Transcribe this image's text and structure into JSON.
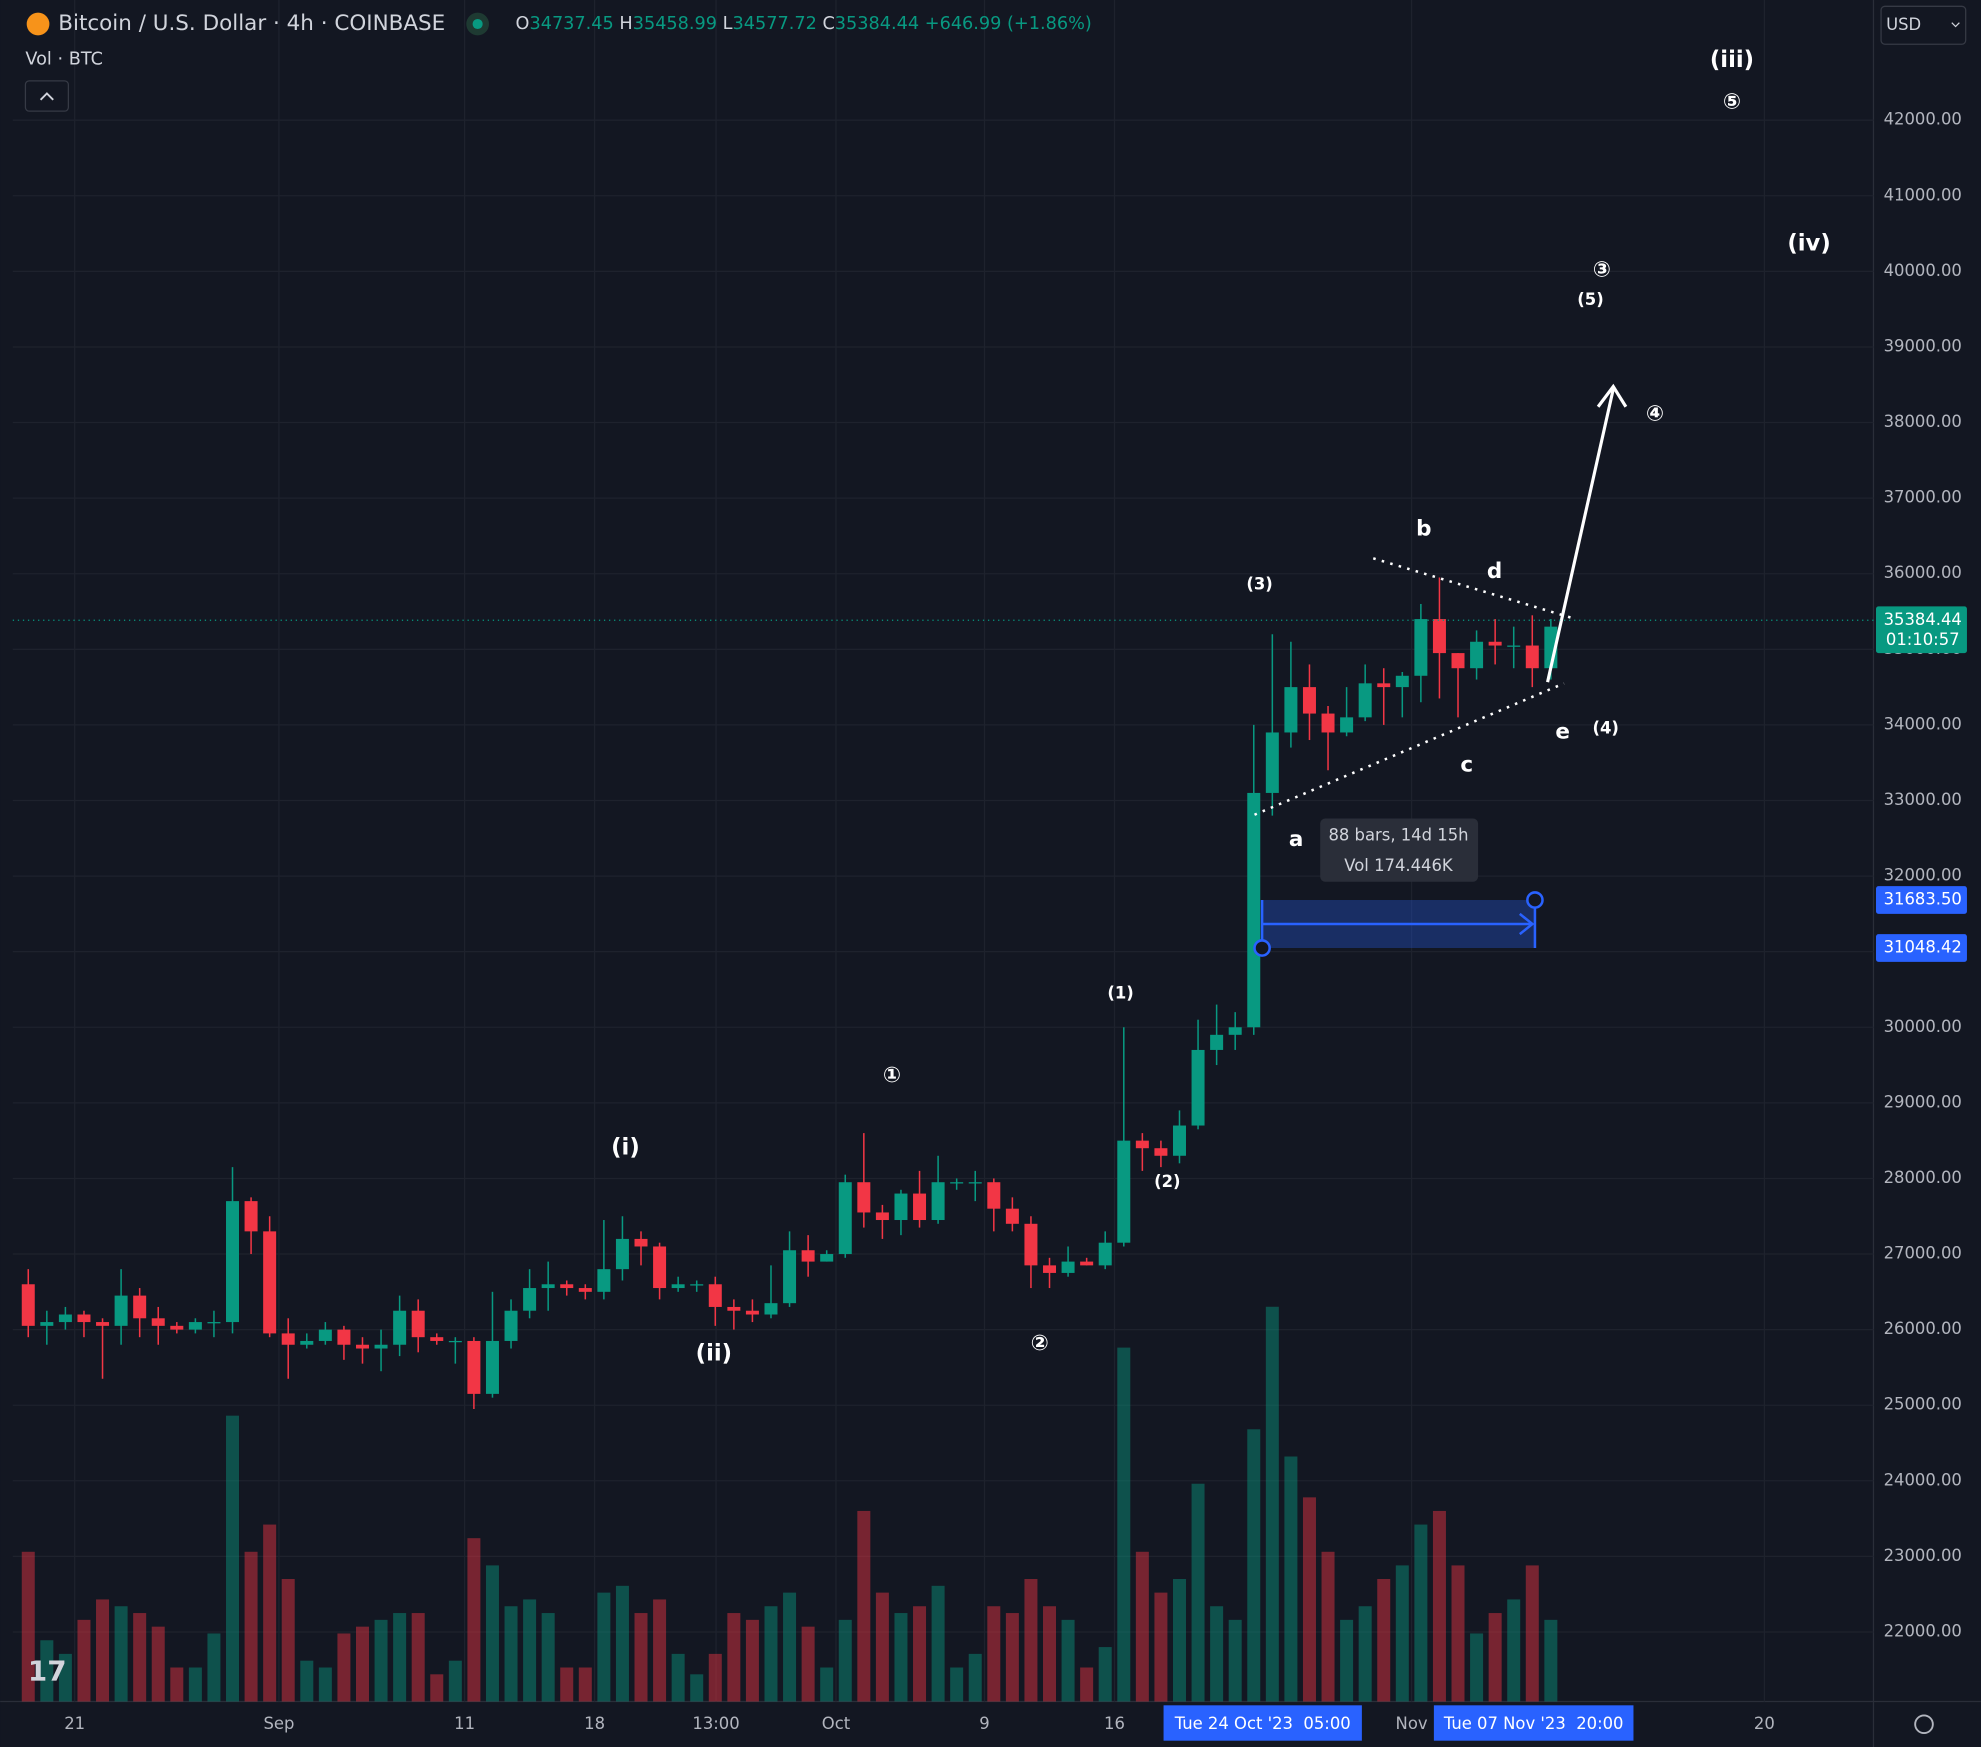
{
  "header": {
    "title": "Bitcoin / U.S. Dollar · 4h · COINBASE",
    "indicator": "Vol · BTC",
    "currency": "USD",
    "ohlc": [
      {
        "label": "O",
        "value": 34737.45
      },
      {
        "label": "H",
        "value": 35458.99
      },
      {
        "label": "L",
        "value": 34577.72
      },
      {
        "label": "C",
        "value": 35384.44
      }
    ],
    "change": "+646.99 (+1.86%)",
    "countdown": "01:10:57"
  },
  "chart_data": {
    "type": "candlestick",
    "up_color": "#089981",
    "down_color": "#f23645",
    "xlim": [
      "2023-08-17T16:00:00Z",
      "2023-11-25T21:00:00Z"
    ],
    "xticks": [
      {
        "value": "2023-08-21",
        "label": "21"
      },
      {
        "value": "2023-09-01",
        "label": "Sep"
      },
      {
        "value": "2023-09-11",
        "label": "11"
      },
      {
        "value": "2023-09-18",
        "label": "18"
      },
      {
        "value": "2023-09-24T13:00:00Z",
        "label": "13:00"
      },
      {
        "value": "2023-10-01",
        "label": "Oct"
      },
      {
        "value": "2023-10-09",
        "label": "9"
      },
      {
        "value": "2023-10-16",
        "label": "16"
      },
      {
        "value": "2023-11-01",
        "label": "Nov"
      },
      {
        "value": "2023-11-20",
        "label": "20"
      }
    ],
    "ylim": [
      21080,
      43590
    ],
    "yticks": [
      {
        "value": 22000,
        "label": "22000.00"
      },
      {
        "value": 23000,
        "label": "23000.00"
      },
      {
        "value": 24000,
        "label": "24000.00"
      },
      {
        "value": 25000,
        "label": "25000.00"
      },
      {
        "value": 26000,
        "label": "26000.00"
      },
      {
        "value": 27000,
        "label": "27000.00"
      },
      {
        "value": 28000,
        "label": "28000.00"
      },
      {
        "value": 29000,
        "label": "29000.00"
      },
      {
        "value": 30000,
        "label": "30000.00"
      },
      {
        "value": 31000,
        "label": "31000.00"
      },
      {
        "value": 32000,
        "label": "32000.00"
      },
      {
        "value": 33000,
        "label": "33000.00"
      },
      {
        "value": 34000,
        "label": "34000.00"
      },
      {
        "value": 35000,
        "label": "35000.00"
      },
      {
        "value": 36000,
        "label": "36000.00"
      },
      {
        "value": 37000,
        "label": "37000.00"
      },
      {
        "value": 38000,
        "label": "38000.00"
      },
      {
        "value": 39000,
        "label": "39000.00"
      },
      {
        "value": 40000,
        "label": "40000.00"
      },
      {
        "value": 41000,
        "label": "41000.00"
      },
      {
        "value": 42000,
        "label": "42000.00"
      }
    ],
    "grid": true,
    "volume_lim": [
      0,
      250000
    ],
    "x": [
      "2023-08-18",
      "2023-08-19",
      "2023-08-20",
      "2023-08-21",
      "2023-08-22",
      "2023-08-23",
      "2023-08-24",
      "2023-08-25",
      "2023-08-26",
      "2023-08-27",
      "2023-08-28",
      "2023-08-29",
      "2023-08-30",
      "2023-08-31",
      "2023-09-01",
      "2023-09-02",
      "2023-09-03",
      "2023-09-04",
      "2023-09-05",
      "2023-09-06",
      "2023-09-07",
      "2023-09-08",
      "2023-09-09",
      "2023-09-10",
      "2023-09-11",
      "2023-09-12",
      "2023-09-13",
      "2023-09-14",
      "2023-09-15",
      "2023-09-16",
      "2023-09-17",
      "2023-09-18",
      "2023-09-19",
      "2023-09-20",
      "2023-09-21",
      "2023-09-22",
      "2023-09-23",
      "2023-09-24",
      "2023-09-25",
      "2023-09-26",
      "2023-09-27",
      "2023-09-28",
      "2023-09-29",
      "2023-09-30",
      "2023-10-01",
      "2023-10-02",
      "2023-10-03",
      "2023-10-04",
      "2023-10-05",
      "2023-10-06",
      "2023-10-07",
      "2023-10-08",
      "2023-10-09",
      "2023-10-10",
      "2023-10-11",
      "2023-10-12",
      "2023-10-13",
      "2023-10-14",
      "2023-10-15",
      "2023-10-16",
      "2023-10-17",
      "2023-10-18",
      "2023-10-19",
      "2023-10-20",
      "2023-10-21",
      "2023-10-22",
      "2023-10-23",
      "2023-10-24",
      "2023-10-25",
      "2023-10-26",
      "2023-10-27",
      "2023-10-28",
      "2023-10-29",
      "2023-10-30",
      "2023-10-31",
      "2023-11-01",
      "2023-11-02",
      "2023-11-03",
      "2023-11-04",
      "2023-11-05",
      "2023-11-06",
      "2023-11-07",
      "2023-11-08"
    ],
    "open": [
      26600,
      26050,
      26100,
      26200,
      26100,
      26050,
      26450,
      26150,
      26050,
      26000,
      26100,
      26100,
      27700,
      27300,
      25950,
      25800,
      25850,
      26000,
      25800,
      25750,
      25800,
      26250,
      25900,
      25850,
      25850,
      25150,
      25850,
      26250,
      26550,
      26600,
      26550,
      26500,
      26800,
      27200,
      27100,
      26550,
      26600,
      26600,
      26300,
      26250,
      26200,
      26350,
      27050,
      26900,
      27000,
      27950,
      27550,
      27450,
      27800,
      27450,
      27950,
      27950,
      27950,
      27600,
      27400,
      26850,
      26750,
      26900,
      26850,
      27150,
      28500,
      28400,
      28300,
      28700,
      29700,
      29900,
      30000,
      33100,
      33900,
      34500,
      34150,
      33900,
      34100,
      34550,
      34500,
      34650,
      35400,
      34950,
      34750,
      35100,
      35050,
      35050,
      34750
    ],
    "high": [
      26800,
      26250,
      26300,
      26250,
      26150,
      26800,
      26550,
      26300,
      26100,
      26150,
      26250,
      28150,
      27750,
      27500,
      26150,
      25950,
      26100,
      26050,
      25900,
      26000,
      26450,
      26400,
      25950,
      25900,
      25900,
      26500,
      26400,
      26800,
      26900,
      26650,
      26600,
      27450,
      27500,
      27300,
      27150,
      26700,
      26650,
      26700,
      26400,
      26400,
      26850,
      27300,
      27250,
      27050,
      28050,
      28600,
      27650,
      27850,
      28100,
      28300,
      28000,
      28100,
      28000,
      27750,
      27500,
      26950,
      27100,
      26950,
      27300,
      30000,
      28600,
      28500,
      28900,
      30100,
      30300,
      30200,
      34000,
      35200,
      35100,
      34800,
      34250,
      34500,
      34800,
      34750,
      34700,
      35600,
      35950,
      34950,
      35250,
      35400,
      35300,
      35450,
      35400
    ],
    "low": [
      25900,
      25800,
      26000,
      25900,
      25350,
      25800,
      25900,
      25800,
      25950,
      25950,
      25900,
      25950,
      27000,
      25900,
      25350,
      25750,
      25800,
      25600,
      25550,
      25450,
      25650,
      25700,
      25800,
      25550,
      24950,
      25100,
      25750,
      26150,
      26250,
      26450,
      26400,
      26400,
      26650,
      26850,
      26400,
      26500,
      26500,
      26050,
      26000,
      26100,
      26150,
      26300,
      26700,
      26900,
      26950,
      27350,
      27200,
      27250,
      27350,
      27400,
      27850,
      27700,
      27300,
      27300,
      26550,
      26550,
      26700,
      26850,
      26800,
      27100,
      28100,
      28150,
      28200,
      28650,
      29500,
      29700,
      29900,
      32800,
      33700,
      33800,
      33400,
      33850,
      34050,
      34000,
      34100,
      34300,
      34350,
      34100,
      34600,
      34800,
      34750,
      34500,
      34600
    ],
    "close": [
      26050,
      26100,
      26200,
      26100,
      26050,
      26450,
      26150,
      26050,
      26000,
      26100,
      26100,
      27700,
      27300,
      25950,
      25800,
      25850,
      26000,
      25800,
      25750,
      25800,
      26250,
      25900,
      25850,
      25850,
      25150,
      25850,
      26250,
      26550,
      26600,
      26550,
      26500,
      26800,
      27200,
      27100,
      26550,
      26600,
      26600,
      26300,
      26250,
      26200,
      26350,
      27050,
      26900,
      27000,
      27950,
      27550,
      27450,
      27800,
      27450,
      27950,
      27950,
      27950,
      27600,
      27400,
      26850,
      26750,
      26900,
      26850,
      27150,
      28500,
      28400,
      28300,
      28700,
      29700,
      29900,
      30000,
      33100,
      33900,
      34500,
      34150,
      33900,
      34100,
      34550,
      34500,
      34650,
      35400,
      34950,
      34750,
      35100,
      35050,
      35050,
      34750,
      35300
    ],
    "volume": [
      22000,
      9000,
      7000,
      12000,
      15000,
      14000,
      13000,
      11000,
      5000,
      5000,
      10000,
      42000,
      22000,
      26000,
      18000,
      6000,
      5000,
      10000,
      11000,
      12000,
      13000,
      13000,
      4000,
      6000,
      24000,
      20000,
      14000,
      15000,
      13000,
      5000,
      5000,
      16000,
      17000,
      13000,
      15000,
      7000,
      4000,
      7000,
      13000,
      12000,
      14000,
      16000,
      11000,
      5000,
      12000,
      28000,
      16000,
      13000,
      14000,
      17000,
      5000,
      7000,
      14000,
      13000,
      18000,
      14000,
      12000,
      5000,
      8000,
      52000,
      22000,
      16000,
      18000,
      32000,
      14000,
      12000,
      40000,
      58000,
      36000,
      30000,
      22000,
      12000,
      14000,
      18000,
      20000,
      26000,
      28000,
      20000,
      10000,
      13000,
      15000,
      20000,
      12000
    ],
    "measure": {
      "top": {
        "value": 31683.5,
        "label": "31683.50"
      },
      "bottom": {
        "value": 31048.42,
        "label": "31048.42"
      },
      "bars": "88 bars, 14d 15h",
      "volume": "Vol 174.446K"
    },
    "cursor_labels": [
      "Tue 24 Oct '23  05:00",
      "Tue 07 Nov '23  20:00"
    ],
    "annotations": [
      "(iii)",
      "⑤",
      "(iv)",
      "③",
      "(5)",
      "④",
      "b",
      "d",
      "(3)",
      "e",
      "(4)",
      "c",
      "a",
      "(1)",
      "①",
      "(i)",
      "(2)",
      "(ii)",
      "②"
    ]
  }
}
